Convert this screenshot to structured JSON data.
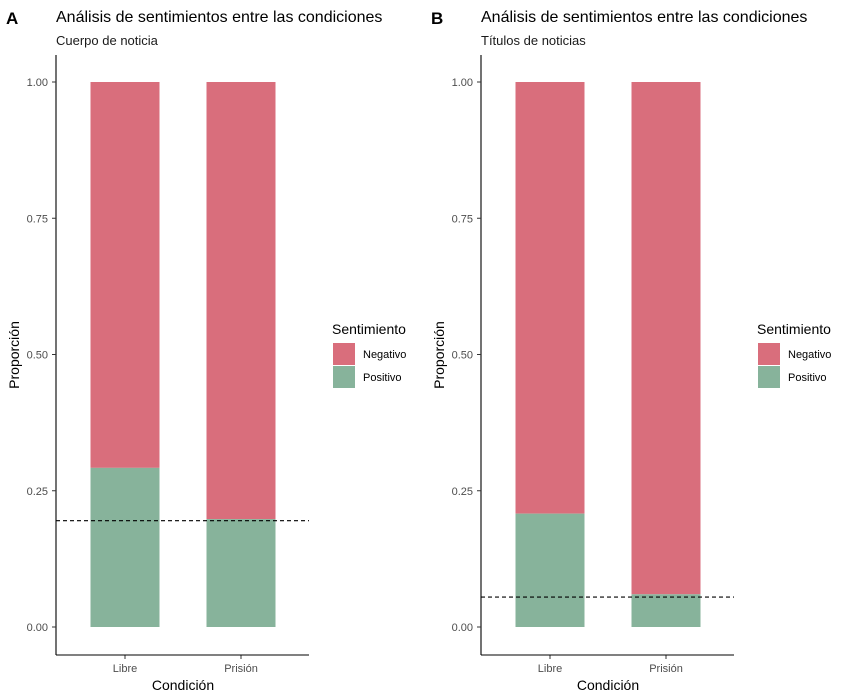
{
  "colors": {
    "Negativo": "#D96E7C",
    "Positivo": "#87B39B"
  },
  "chart_data": [
    {
      "type": "bar",
      "tag": "A",
      "title": "Análisis de sentimientos entre las condiciones",
      "subtitle": "Cuerpo de noticia",
      "xlabel": "Condición",
      "ylabel": "Proporción",
      "ylim": [
        0,
        1
      ],
      "yticks": [
        "0.00",
        "0.25",
        "0.50",
        "0.75",
        "1.00"
      ],
      "categories": [
        "Libre",
        "Prisión"
      ],
      "stacked": true,
      "series": [
        {
          "name": "Negativo",
          "values": [
            0.708,
            0.802
          ]
        },
        {
          "name": "Positivo",
          "values": [
            0.292,
            0.198
          ]
        }
      ],
      "reference_line": {
        "y": 0.195,
        "style": "dashed"
      },
      "legend": {
        "title": "Sentimiento",
        "entries": [
          "Negativo",
          "Positivo"
        ],
        "position": "right"
      },
      "grid": false
    },
    {
      "type": "bar",
      "tag": "B",
      "title": "Análisis de sentimientos entre las condiciones",
      "subtitle": "Títulos de noticias",
      "xlabel": "Condición",
      "ylabel": "Proporción",
      "ylim": [
        0,
        1
      ],
      "yticks": [
        "0.00",
        "0.25",
        "0.50",
        "0.75",
        "1.00"
      ],
      "categories": [
        "Libre",
        "Prisión"
      ],
      "stacked": true,
      "series": [
        {
          "name": "Negativo",
          "values": [
            0.792,
            0.94
          ]
        },
        {
          "name": "Positivo",
          "values": [
            0.208,
            0.06
          ]
        }
      ],
      "reference_line": {
        "y": 0.055,
        "style": "dashed"
      },
      "legend": {
        "title": "Sentimiento",
        "entries": [
          "Negativo",
          "Positivo"
        ],
        "position": "right"
      },
      "grid": false
    }
  ]
}
